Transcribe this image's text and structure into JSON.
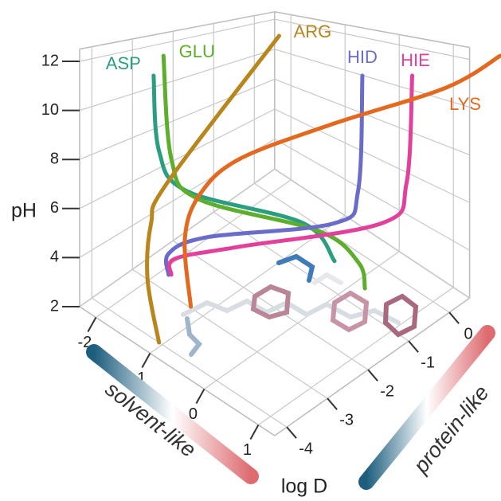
{
  "chart_data": {
    "type": "line3d",
    "x_label": "log D",
    "z_label": "pH",
    "annotations": [
      "solvent-like",
      "protein-like"
    ],
    "xlim": [
      -2.3,
      1.3
    ],
    "ylim": [
      -4.3,
      0.5
    ],
    "zlim": [
      2,
      12.5
    ],
    "xticks": [
      -2,
      -1,
      0,
      1
    ],
    "yticks": [
      0,
      -1,
      -2,
      -3,
      -4
    ],
    "zticks": [
      2,
      4,
      6,
      8,
      10,
      12
    ],
    "grid": true,
    "series": [
      {
        "name": "ASP",
        "color": "#2b9e80",
        "x": [
          -1.52,
          -1.62,
          -1.23,
          -0.09,
          0.26
        ],
        "y": [
          -3.52,
          -3.25,
          -3.08,
          -1.75,
          -1.44
        ],
        "z": [
          11.5,
          8.2,
          6.8,
          5.6,
          4.2
        ]
      },
      {
        "name": "GLU",
        "color": "#5cae2c",
        "x": [
          -1.75,
          -1.43,
          -1.06,
          0.16,
          0.52,
          0.62
        ],
        "y": [
          -2.97,
          -3.2,
          -3.02,
          -1.69,
          -1.19,
          -1.17
        ],
        "z": [
          12,
          8,
          6.6,
          5.5,
          4.2,
          3.3
        ]
      },
      {
        "name": "ARG",
        "color": "#b8861c",
        "x": [
          -1.07,
          -1.22,
          -1.58,
          -1.52,
          -1.06
        ],
        "y": [
          -1.03,
          -3.59,
          -3.5,
          -3.67,
          -4.0
        ],
        "z": [
          12.5,
          7.5,
          5.5,
          3.5,
          2
        ]
      },
      {
        "name": "HID",
        "color": "#6a6cc9",
        "x": [
          1.0,
          0.77,
          0.4,
          -0.93,
          -1.32,
          -1.34
        ],
        "y": [
          -1.74,
          -1.54,
          -1.62,
          -2.99,
          -3.41,
          -3.39
        ],
        "z": [
          12,
          7.5,
          6,
          5.2,
          4.5,
          3.6
        ]
      },
      {
        "name": "HIE",
        "color": "#e2419b",
        "x": [
          1.47,
          1.23,
          0.95,
          -0.46,
          -1.13,
          -1.2
        ],
        "y": [
          -1.14,
          -0.96,
          -1.18,
          -2.83,
          -3.51,
          -3.51
        ],
        "z": [
          12,
          7.8,
          6.2,
          5.2,
          4.6,
          3.9
        ]
      },
      {
        "name": "LYS",
        "color": "#e2691f",
        "x": [
          2.0,
          1.72,
          0.51,
          -0.49,
          -0.93,
          -1.07,
          -0.96
        ],
        "y": [
          0.32,
          -0.64,
          -1.78,
          -2.79,
          -3.18,
          -3.35,
          -3.35
        ],
        "z": [
          12.5,
          11.5,
          10,
          8.5,
          7,
          5.3,
          2.8
        ]
      }
    ]
  }
}
